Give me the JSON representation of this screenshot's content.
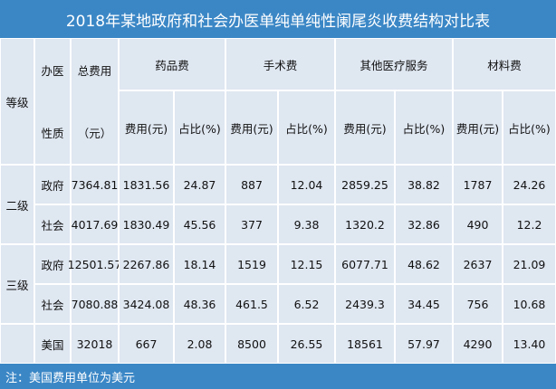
{
  "title": "2018年某地政府和社会办医单纯单纯性阑尾炎收费结构对比表",
  "table": {
    "head": {
      "level": "等级",
      "type": [
        "办医",
        "性质"
      ],
      "total": [
        "总费用",
        "（元）"
      ],
      "groups": [
        {
          "name": "药品费",
          "cost": "费用(元)",
          "share": "占比(%)"
        },
        {
          "name": "手术费",
          "cost": "费用(元)",
          "share": "占比(%)"
        },
        {
          "name": "其他医疗服务",
          "cost": "费用(元)",
          "share": "占比(%)"
        },
        {
          "name": "材料费",
          "cost": "费用(元)",
          "share": "占比(%)"
        }
      ]
    },
    "rows": [
      {
        "level": "二级",
        "items": [
          {
            "type": "政府",
            "values": [
              "7364.81",
              "1831.56",
              "24.87",
              "887",
              "12.04",
              "2859.25",
              "38.82",
              "1787",
              "24.26"
            ]
          },
          {
            "type": "社会",
            "values": [
              "4017.69",
              "1830.49",
              "45.56",
              "377",
              "9.38",
              "1320.2",
              "32.86",
              "490",
              "12.2"
            ]
          }
        ]
      },
      {
        "level": "三级",
        "items": [
          {
            "type": "政府",
            "values": [
              "12501.57",
              "2267.86",
              "18.14",
              "1519",
              "12.15",
              "6077.71",
              "48.62",
              "2637",
              "21.09"
            ]
          },
          {
            "type": "社会",
            "values": [
              "7080.88",
              "3424.08",
              "48.36",
              "461.5",
              "6.52",
              "2439.3",
              "34.45",
              "756",
              "10.68"
            ]
          }
        ]
      },
      {
        "items": [
          {
            "type": "美国",
            "values": [
              "32018",
              "667",
              "2.08",
              "8500",
              "26.55",
              "18561",
              "57.97",
              "4290",
              "13.40"
            ]
          }
        ]
      }
    ]
  },
  "note": "注：美国费用单位为美元"
}
